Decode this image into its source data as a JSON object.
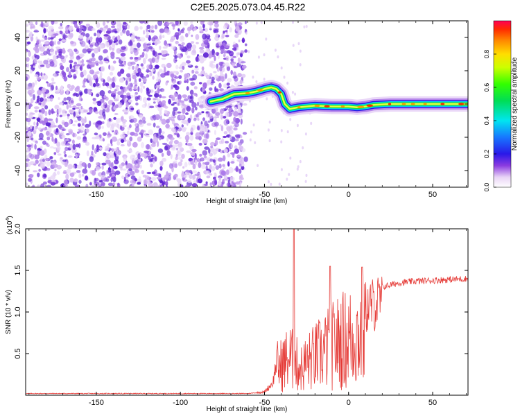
{
  "page": {
    "title": "C2E5.2025.073.04.45.R22"
  },
  "chart_data": [
    {
      "type": "heatmap",
      "xlabel": "Height of straight line (km)",
      "ylabel": "Frequency (Hz)",
      "xlim": [
        -192,
        71
      ],
      "ylim": [
        -50,
        50
      ],
      "xticks": [
        -150,
        -100,
        -50,
        0,
        50
      ],
      "yticks": [
        -40,
        -20,
        0,
        20,
        40
      ],
      "colorbar": {
        "label": "Normalized spectral amplitude",
        "range": [
          0,
          1
        ],
        "ticks": [
          0.0,
          0.2,
          0.4,
          0.6,
          0.8
        ]
      },
      "ridge": {
        "description": "dominant frequency track",
        "points": [
          [
            -82,
            1.5
          ],
          [
            -75,
            3
          ],
          [
            -68,
            6
          ],
          [
            -60,
            6.5
          ],
          [
            -55,
            7.5
          ],
          [
            -50,
            9
          ],
          [
            -46,
            10
          ],
          [
            -43,
            9
          ],
          [
            -40,
            6
          ],
          [
            -38,
            0
          ],
          [
            -35,
            -3
          ],
          [
            -30,
            -2
          ],
          [
            -25,
            -1.5
          ],
          [
            -20,
            -1
          ],
          [
            -10,
            -1.5
          ],
          [
            0,
            -1.5
          ],
          [
            5,
            -2
          ],
          [
            10,
            -1.5
          ],
          [
            15,
            -0.5
          ],
          [
            25,
            0
          ],
          [
            40,
            0
          ],
          [
            71,
            0
          ]
        ]
      },
      "noise_region_x": [
        -192,
        -67
      ]
    },
    {
      "type": "line",
      "xlabel": "Height of straight line (km)",
      "ylabel": "SNR (10 * v/v)",
      "multiplier_label": "(x10",
      "multiplier_exp": "4",
      "multiplier_close": ")",
      "xlim": [
        -192,
        71
      ],
      "ylim": [
        0,
        2.0
      ],
      "xticks": [
        -150,
        -100,
        -50,
        0,
        50
      ],
      "yticks": [
        0.5,
        1.0,
        1.5,
        2.0
      ],
      "ytick_labels": [
        "0.5",
        "1.0",
        "1.5",
        "2.0"
      ],
      "color": "#e53935",
      "envelope": {
        "x": [
          -192,
          -100,
          -60,
          -50,
          -45,
          -42,
          -38,
          -35,
          -32,
          -30,
          -28,
          -25,
          -20,
          -15,
          -10,
          -5,
          0,
          5,
          10,
          15,
          20,
          30,
          40,
          50,
          60,
          71
        ],
        "y": [
          0.02,
          0.02,
          0.02,
          0.04,
          0.15,
          0.5,
          0.62,
          0.7,
          0.6,
          0.55,
          0.5,
          0.6,
          0.7,
          0.8,
          0.9,
          1.0,
          1.05,
          1.1,
          1.2,
          1.25,
          1.3,
          1.35,
          1.37,
          1.38,
          1.39,
          1.4
        ]
      },
      "peaks": [
        {
          "x": -32.5,
          "y": 2.05
        },
        {
          "x": -11,
          "y": 1.55
        },
        {
          "x": 8,
          "y": 1.54
        }
      ]
    }
  ]
}
